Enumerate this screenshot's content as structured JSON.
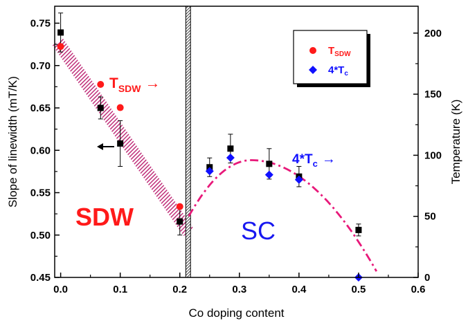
{
  "chart_data": {
    "type": "scatter",
    "xlabel": "Co doping content",
    "ylabel_left": "Slope of linewidth (mT/K)",
    "ylabel_right": "Temperature (K)",
    "xlim": [
      -0.01,
      0.6
    ],
    "ylim_left": [
      0.45,
      0.77
    ],
    "ylim_right": [
      0,
      222
    ],
    "x_ticks": [
      "0.0",
      "0.1",
      "0.2",
      "0.3",
      "0.4",
      "0.5",
      "0.6"
    ],
    "y_left_ticks": [
      "0.45",
      "0.50",
      "0.55",
      "0.60",
      "0.65",
      "0.70",
      "0.75"
    ],
    "y_right_ticks": [
      "0",
      "50",
      "100",
      "150",
      "200"
    ],
    "colors": {
      "slope": "#000000",
      "tsdw": "#ff1a1a",
      "tc": "#1010ff",
      "sdw_band": "#c0307a",
      "sc_curve": "#e8197a",
      "sdw_label": "#ff1a1a",
      "sc_label": "#1818f0"
    },
    "series": [
      {
        "name": "",
        "axis": "left",
        "marker": "square",
        "x": [
          0.0,
          0.067,
          0.1,
          0.2,
          0.25,
          0.285,
          0.35,
          0.4,
          0.5
        ],
        "y": [
          0.739,
          0.65,
          0.608,
          0.516,
          0.58,
          0.602,
          0.584,
          0.569,
          0.506
        ],
        "yerr": [
          0.023,
          0.013,
          0.027,
          0.016,
          0.011,
          0.017,
          0.018,
          0.012,
          0.007
        ]
      },
      {
        "name": "T_SDW",
        "axis": "right",
        "marker": "circle",
        "x": [
          0.0,
          0.067,
          0.1,
          0.2
        ],
        "y": [
          189,
          158,
          139,
          58
        ]
      },
      {
        "name": "4*T_c",
        "axis": "right",
        "marker": "diamond",
        "x": [
          0.25,
          0.285,
          0.35,
          0.4,
          0.5
        ],
        "y": [
          87,
          98,
          84,
          80,
          0
        ]
      }
    ],
    "legend": {
      "position": "top-right",
      "entries": [
        {
          "main": "T",
          "sub": "SDW",
          "marker": "circle"
        },
        {
          "main": "4*T",
          "sub": "c",
          "marker": "diamond"
        }
      ]
    },
    "annotations": {
      "tsdw": {
        "main": "T",
        "sub": "SDW",
        "arrow": "→"
      },
      "tc": {
        "main": "4*T",
        "sub": "c",
        "arrow": "→"
      },
      "sdw_region": "SDW",
      "sc_region": "SC"
    },
    "sdw_band": {
      "x": [
        -0.005,
        0.215
      ],
      "y": [
        0.728,
        0.503
      ]
    },
    "phase_boundary": {
      "x": [
        0.21,
        0.218
      ]
    },
    "sc_dome": {
      "x_start": 0.215,
      "x_peak": 0.32,
      "x_end": 0.53,
      "y_start": 50,
      "y_peak": 96,
      "y_end": 5
    }
  }
}
